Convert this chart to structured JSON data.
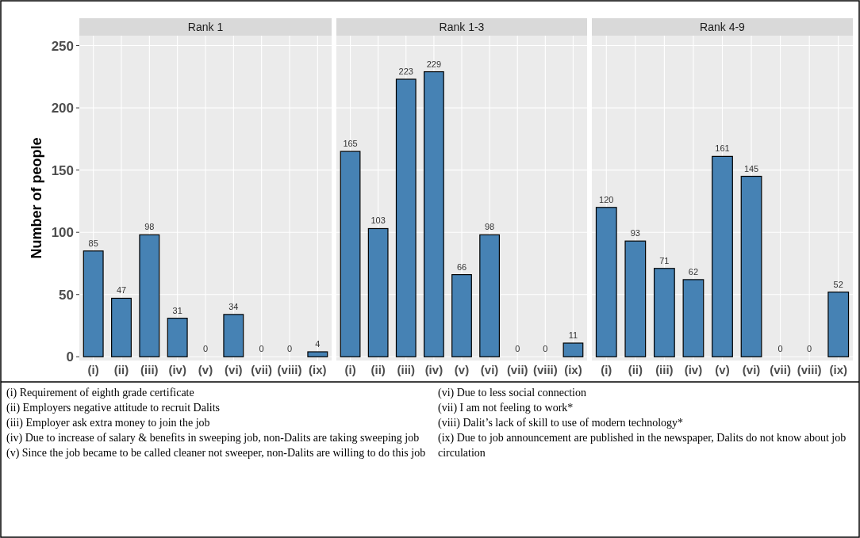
{
  "chart_data": [
    {
      "type": "bar",
      "title": "Rank 1",
      "ylabel": "Number of people",
      "categories": [
        "(i)",
        "(ii)",
        "(iii)",
        "(iv)",
        "(v)",
        "(vi)",
        "(vii)",
        "(viii)",
        "(ix)"
      ],
      "values": [
        85,
        47,
        98,
        31,
        0,
        34,
        0,
        0,
        4
      ],
      "color": "#4682b4",
      "ylim": [
        -3,
        258
      ],
      "yticks": [
        0,
        50,
        100,
        150,
        200,
        250
      ],
      "grid": true,
      "data_labels": true,
      "annotations": [
        "(i) Requirement of eighth grade certificate",
        "(ii) Employers negative attitude to recruit Dalits",
        "(iii) Employer ask extra money to join the job",
        "(iv) Due to increase of salary & benefits in sweeping job, non-Dalits are taking sweeping job",
        "(v) Since the job became to be called cleaner not sweeper, non-Dalits are willing to do this job",
        "(vi) Due to less social connection",
        "(vii) I am not feeling to work*",
        "(viii) Dalit’s lack of skill to use of modern technology*",
        "(ix) Due to job announcement are published in the newspaper, Dalits do not know about job circulation"
      ]
    },
    {
      "type": "bar",
      "title": "Rank 1-3",
      "categories": [
        "(i)",
        "(ii)",
        "(iii)",
        "(iv)",
        "(v)",
        "(vi)",
        "(vii)",
        "(viii)",
        "(ix)"
      ],
      "values": [
        165,
        103,
        223,
        229,
        66,
        98,
        0,
        0,
        11
      ],
      "color": "#4682b4",
      "ylim": [
        -3,
        258
      ],
      "yticks": [
        0,
        50,
        100,
        150,
        200,
        250
      ],
      "grid": true,
      "data_labels": true,
      "tick_labels": "x"
    },
    {
      "type": "bar",
      "title": "Rank 4-9",
      "categories": [
        "(i)",
        "(ii)",
        "(iii)",
        "(iv)",
        "(v)",
        "(vi)",
        "(vii)",
        "(viii)",
        "(ix)"
      ],
      "values": [
        120,
        93,
        71,
        62,
        161,
        145,
        0,
        0,
        52
      ],
      "color": "#4682b4",
      "ylim": [
        -3,
        258
      ],
      "yticks": [
        0,
        50,
        100,
        150,
        200,
        250
      ],
      "grid": true,
      "data_labels": true,
      "tick_labels": "x"
    }
  ]
}
